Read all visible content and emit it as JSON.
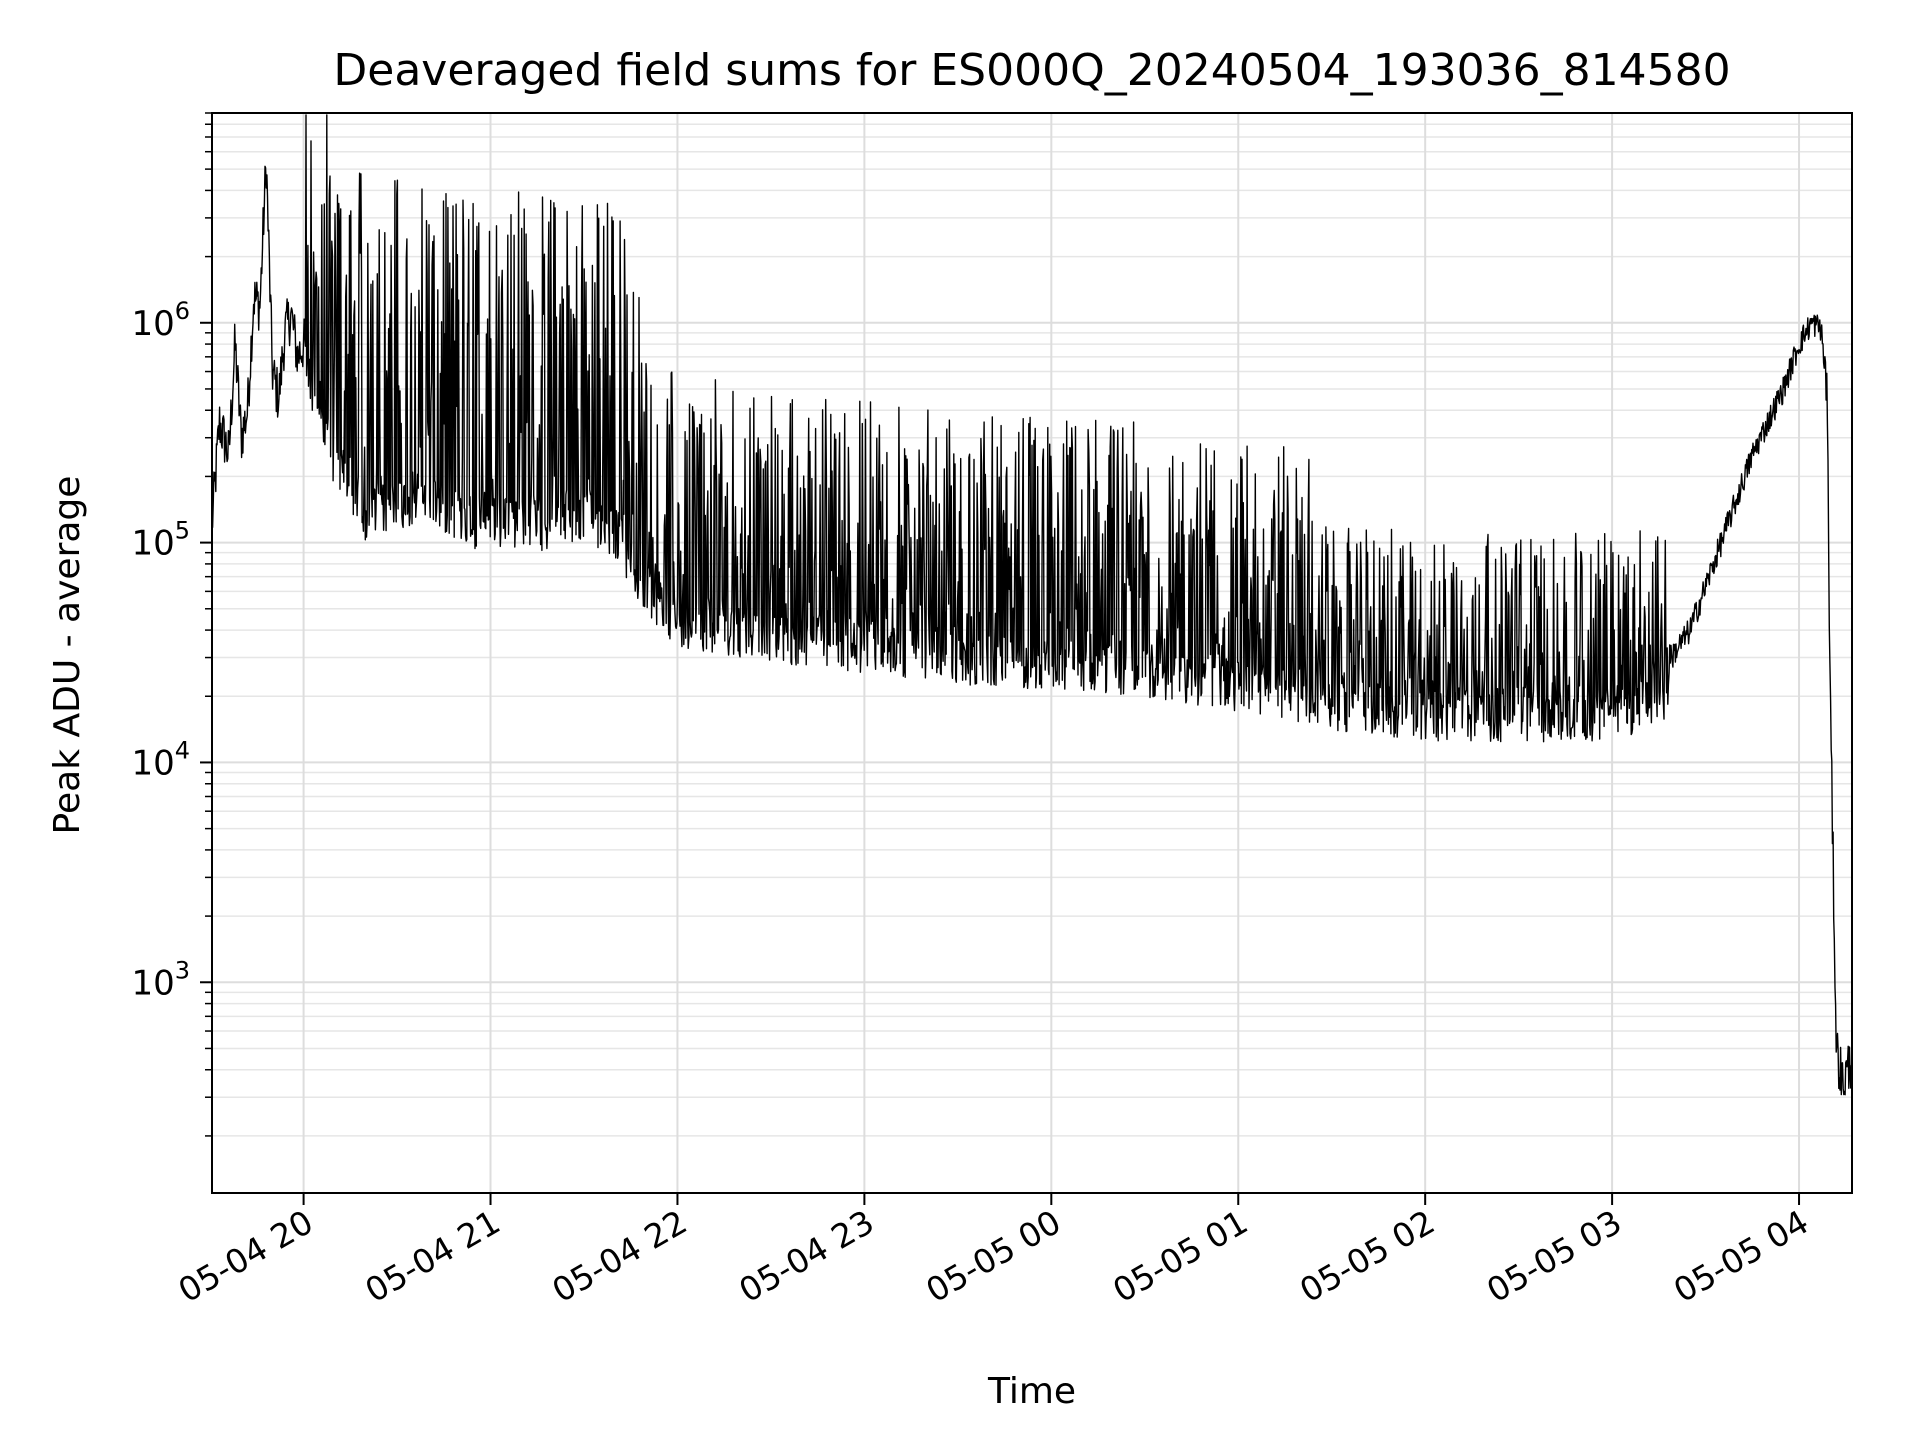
{
  "chart_data": {
    "type": "line",
    "title": "Deaveraged field sums for ES000Q_20240504_193036_814580",
    "xlabel": "Time",
    "ylabel": "Peak ADU - average",
    "yscale": "log",
    "ylim": [
      110,
      9000000
    ],
    "xlim": [
      "2024-05-04 19:30:36",
      "2024-05-05 04:17:00"
    ],
    "x_ticks": [
      "05-04 20",
      "05-04 21",
      "05-04 22",
      "05-04 23",
      "05-05 00",
      "05-05 01",
      "05-05 02",
      "05-05 03",
      "05-05 04"
    ],
    "y_ticks": [
      {
        "base": "10",
        "exp": "3",
        "value": 1000
      },
      {
        "base": "10",
        "exp": "4",
        "value": 10000
      },
      {
        "base": "10",
        "exp": "5",
        "value": 100000
      },
      {
        "base": "10",
        "exp": "6",
        "value": 1000000
      }
    ],
    "grid": true,
    "line_color": "#000000",
    "series": [
      {
        "x": [
          "2024-05-04 19:30:36",
          "2024-05-04 19:33",
          "2024-05-04 19:36",
          "2024-05-04 19:38",
          "2024-05-04 19:40",
          "2024-05-04 19:42",
          "2024-05-04 19:44",
          "2024-05-04 19:46",
          "2024-05-04 19:48",
          "2024-05-04 19:50",
          "2024-05-04 19:52",
          "2024-05-04 19:54",
          "2024-05-04 19:56",
          "2024-05-04 19:58",
          "2024-05-04 20:00",
          "2024-05-04 20:05",
          "2024-05-04 20:10",
          "2024-05-04 20:15",
          "2024-05-04 20:20",
          "2024-05-04 20:30",
          "2024-05-04 20:40",
          "2024-05-04 20:50",
          "2024-05-04 21:00",
          "2024-05-04 21:10",
          "2024-05-04 21:20",
          "2024-05-04 21:30",
          "2024-05-04 21:40",
          "2024-05-04 21:50",
          "2024-05-04 22:00",
          "2024-05-04 22:30",
          "2024-05-04 23:00",
          "2024-05-04 23:30",
          "2024-05-05 00:00",
          "2024-05-05 00:30",
          "2024-05-05 01:00",
          "2024-05-05 01:30",
          "2024-05-05 02:00",
          "2024-05-05 02:30",
          "2024-05-05 03:00",
          "2024-05-05 03:15",
          "2024-05-05 03:25",
          "2024-05-05 03:35",
          "2024-05-05 03:45",
          "2024-05-05 03:55",
          "2024-05-05 04:00",
          "2024-05-05 04:04",
          "2024-05-05 04:07",
          "2024-05-05 04:09",
          "2024-05-05 04:10",
          "2024-05-05 04:12",
          "2024-05-05 04:14",
          "2024-05-05 04:17"
        ],
        "y": [
          120000,
          350000,
          250000,
          800000,
          300000,
          400000,
          1300000,
          1200000,
          5500000,
          600000,
          450000,
          900000,
          1100000,
          700000,
          800000,
          600000,
          300000,
          250000,
          180000,
          200000,
          220000,
          180000,
          150000,
          170000,
          160000,
          180000,
          150000,
          80000,
          60000,
          50000,
          45000,
          40000,
          38000,
          35000,
          30000,
          25000,
          22000,
          22000,
          22000,
          25000,
          40000,
          100000,
          250000,
          500000,
          800000,
          1000000,
          950000,
          500000,
          20000,
          500,
          350,
          450
        ]
      }
    ]
  }
}
